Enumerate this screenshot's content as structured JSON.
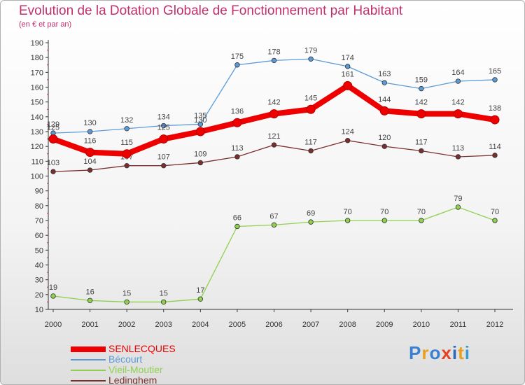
{
  "chart_data": {
    "type": "line",
    "title": "Evolution de la Dotation Globale de Fonctionnement par Habitant",
    "subtitle": "(en € et par an)",
    "xlabel": "",
    "ylabel": "",
    "categories": [
      "2000",
      "2001",
      "2002",
      "2003",
      "2004",
      "2005",
      "2006",
      "2007",
      "2008",
      "2009",
      "2010",
      "2011",
      "2012"
    ],
    "ylim": [
      10,
      190
    ],
    "yticks": [
      10,
      20,
      30,
      40,
      50,
      60,
      70,
      80,
      90,
      100,
      110,
      120,
      130,
      140,
      150,
      160,
      170,
      180,
      190
    ],
    "grid": false,
    "legend_position": "bottom-left",
    "series": [
      {
        "name": "Bécourt",
        "color": "#5b9bd5",
        "values": [
          129,
          130,
          132,
          134,
          135,
          175,
          178,
          179,
          174,
          163,
          159,
          164,
          165
        ],
        "label_offsets": [
          -1,
          -1,
          -1,
          -1,
          -1,
          -1,
          -1,
          -1,
          -1,
          -1,
          -1,
          -1,
          -1
        ]
      },
      {
        "name": "Vieil-Moutier",
        "color": "#8fd14f",
        "values": [
          19,
          16,
          15,
          15,
          17,
          66,
          67,
          69,
          70,
          70,
          70,
          79,
          70
        ],
        "label_offsets": [
          -1,
          -1,
          -1,
          -1,
          -1,
          -1,
          -1,
          -1,
          -1,
          -1,
          -1,
          -1,
          -1
        ]
      },
      {
        "name": "Ledinghem",
        "color": "#7a2e2e",
        "values": [
          103,
          104,
          107,
          107,
          109,
          113,
          121,
          117,
          124,
          120,
          117,
          113,
          114
        ],
        "label_offsets": [
          -1,
          -1,
          -1,
          -1,
          -1,
          -1,
          -1,
          -1,
          -1,
          -1,
          -1,
          -1,
          -1
        ]
      },
      {
        "name": "SENLECQUES",
        "color": "#ee0000",
        "values": [
          125,
          116,
          115,
          125,
          130,
          136,
          142,
          145,
          161,
          144,
          142,
          142,
          138
        ],
        "label_offsets": [
          -1,
          -1,
          -1,
          -1,
          -1,
          -1,
          -1,
          -1,
          -1,
          -1,
          -1,
          -1,
          -1
        ]
      }
    ],
    "legend_order": [
      "SENLECQUES",
      "Bécourt",
      "Vieil-Moutier",
      "Ledinghem"
    ]
  },
  "logo": {
    "text": "Proxiti",
    "colors": [
      "#3a7fd0",
      "#e8a020",
      "#3a7fd0",
      "#e84020",
      "#2a6ab8",
      "#e8a020",
      "#3a9ad0"
    ]
  }
}
